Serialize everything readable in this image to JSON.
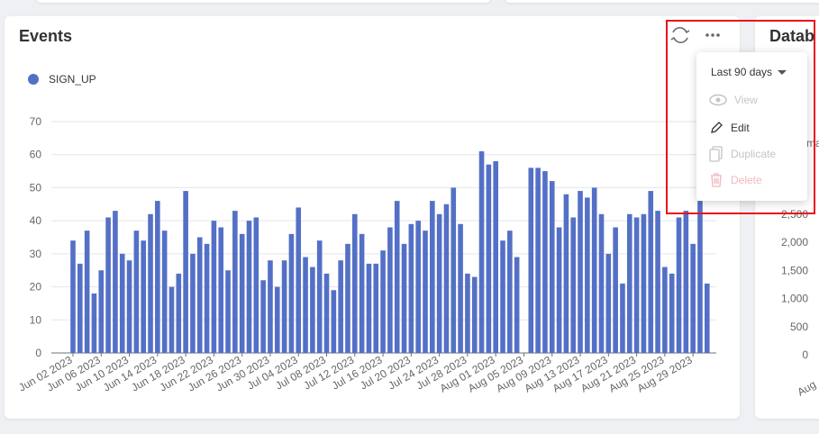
{
  "events_card": {
    "title": "Events"
  },
  "menu": {
    "range": "Last 90 days",
    "items": [
      "View",
      "Edit",
      "Duplicate",
      "Delete"
    ]
  },
  "database_card": {
    "title": "Datab",
    "side_text": "ma",
    "y_axis_labels": [
      "2,500",
      "2,000",
      "1,500",
      "1,000",
      "500",
      "0"
    ],
    "x_axis_label": "Aug"
  },
  "chart_data": {
    "type": "bar",
    "categories": [
      "Jun 02 2023",
      null,
      null,
      null,
      "Jun 06 2023",
      null,
      null,
      null,
      "Jun 10 2023",
      null,
      null,
      null,
      "Jun 14 2023",
      null,
      null,
      null,
      "Jun 18 2023",
      null,
      null,
      null,
      "Jun 22 2023",
      null,
      null,
      null,
      "Jun 26 2023",
      null,
      null,
      null,
      "Jun 30 2023",
      null,
      null,
      null,
      "Jul 04 2023",
      null,
      null,
      null,
      "Jul 08 2023",
      null,
      null,
      null,
      "Jul 12 2023",
      null,
      null,
      null,
      "Jul 16 2023",
      null,
      null,
      null,
      "Jul 20 2023",
      null,
      null,
      null,
      "Jul 24 2023",
      null,
      null,
      null,
      "Jul 28 2023",
      null,
      null,
      null,
      "Aug 01 2023",
      null,
      null,
      null,
      "Aug 05 2023",
      null,
      null,
      null,
      "Aug 09 2023",
      null,
      null,
      null,
      "Aug 13 2023",
      null,
      null,
      null,
      "Aug 17 2023",
      null,
      null,
      null,
      "Aug 21 2023",
      null,
      null,
      null,
      "Aug 25 2023",
      null,
      null,
      null,
      "Aug 29 2023",
      null,
      null
    ],
    "series": [
      {
        "name": "SIGN_UP",
        "color": "#5470c6",
        "values": [
          34,
          27,
          37,
          18,
          25,
          41,
          43,
          30,
          28,
          37,
          34,
          42,
          46,
          37,
          20,
          24,
          49,
          30,
          35,
          33,
          40,
          38,
          25,
          43,
          36,
          40,
          41,
          22,
          28,
          20,
          28,
          36,
          44,
          29,
          26,
          34,
          24,
          19,
          28,
          33,
          42,
          36,
          27,
          27,
          31,
          38,
          46,
          33,
          39,
          40,
          37,
          46,
          42,
          45,
          50,
          39,
          24,
          23,
          61,
          57,
          58,
          34,
          37,
          29,
          0,
          56,
          56,
          55,
          52,
          38,
          48,
          41,
          49,
          47,
          50,
          42,
          30,
          38,
          21,
          42,
          41,
          42,
          49,
          43,
          26,
          24,
          41,
          43,
          33,
          46,
          21
        ]
      }
    ],
    "ylim": [
      0,
      70
    ],
    "yticks": [
      0,
      10,
      20,
      30,
      40,
      50,
      60,
      70
    ],
    "grid": true
  }
}
